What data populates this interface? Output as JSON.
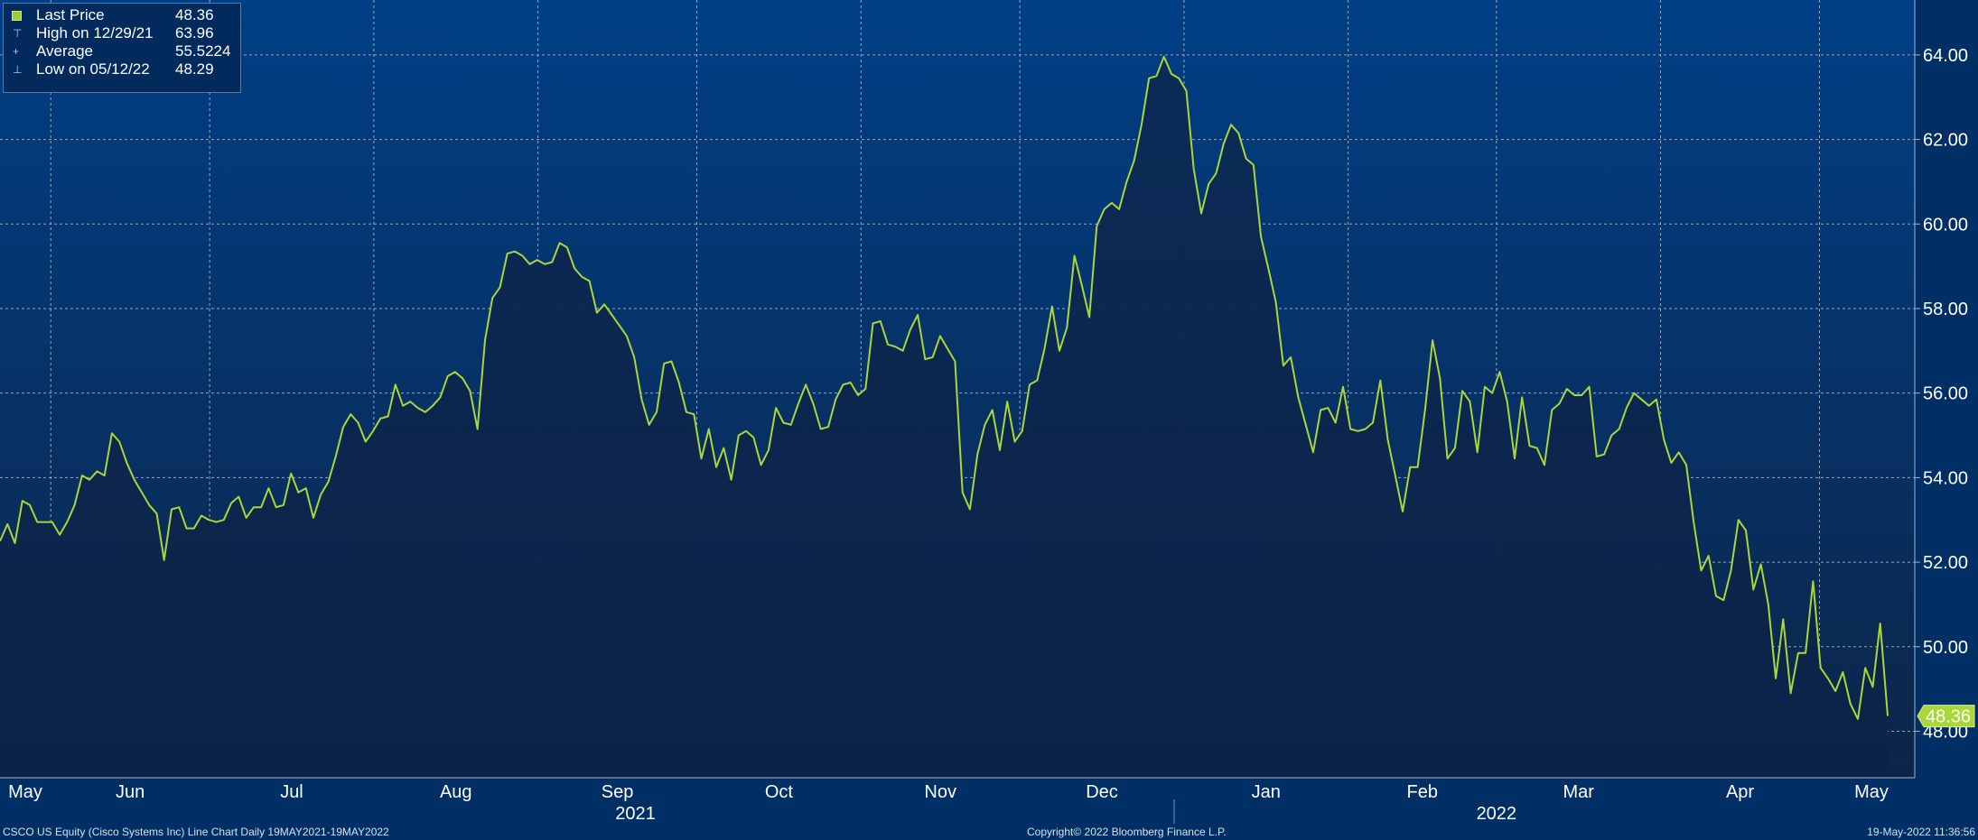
{
  "legend": {
    "last_label": "Last Price",
    "last_value": "48.36",
    "high_label": "High on 12/29/21",
    "high_value": "63.96",
    "avg_label": "Average",
    "avg_value": "55.5224",
    "low_label": "Low on 05/12/22",
    "low_value": "48.29"
  },
  "footer": {
    "left": "CSCO US Equity (Cisco Systems Inc) Line Chart  Daily 19MAY2021-19MAY2022",
    "center": "Copyright© 2022 Bloomberg Finance L.P.",
    "right": "19-May-2022 11:36:56"
  },
  "colors": {
    "background_top": "#003f86",
    "background_bottom": "#0d2548",
    "line": "#a9d638",
    "area_fill": "#0c2347",
    "grid": "#8fa6c4",
    "text": "#ffffff"
  },
  "chart_data": {
    "type": "area",
    "title": "",
    "xlabel": "",
    "ylabel": "",
    "x_range": [
      "2021-05-19",
      "2022-05-19"
    ],
    "ylim": [
      46.9,
      65.3
    ],
    "grid": true,
    "legend_position": "top-left",
    "y_ticks": [
      "48.00",
      "50.00",
      "52.00",
      "54.00",
      "56.00",
      "58.00",
      "60.00",
      "62.00",
      "64.00"
    ],
    "x_month_labels": [
      "May",
      "Jun",
      "Jul",
      "Aug",
      "Sep",
      "Oct",
      "Nov",
      "Dec",
      "Jan",
      "Feb",
      "Mar",
      "Apr",
      "May"
    ],
    "x_year_labels": [
      "2021",
      "2022"
    ],
    "last_price_tag": "48.36",
    "series": [
      {
        "name": "Last Price",
        "values": [
          52.5,
          52.9,
          52.45,
          53.45,
          53.35,
          52.95,
          52.95,
          52.95,
          52.65,
          52.95,
          53.35,
          54.05,
          53.95,
          54.15,
          54.05,
          55.05,
          54.85,
          54.35,
          53.95,
          53.65,
          53.35,
          53.15,
          52.05,
          53.25,
          53.3,
          52.8,
          52.8,
          53.1,
          53.0,
          52.95,
          53.0,
          53.4,
          53.55,
          53.05,
          53.3,
          53.3,
          53.75,
          53.3,
          53.35,
          54.1,
          53.65,
          53.75,
          53.05,
          53.6,
          53.9,
          54.5,
          55.2,
          55.5,
          55.3,
          54.85,
          55.1,
          55.4,
          55.45,
          56.2,
          55.7,
          55.8,
          55.65,
          55.55,
          55.7,
          55.9,
          56.4,
          56.5,
          56.35,
          56.05,
          55.15,
          57.25,
          58.25,
          58.5,
          59.3,
          59.35,
          59.25,
          59.05,
          59.15,
          59.05,
          59.1,
          59.55,
          59.45,
          58.95,
          58.75,
          58.65,
          57.9,
          58.1,
          57.85,
          57.6,
          57.35,
          56.85,
          55.85,
          55.25,
          55.55,
          56.7,
          56.75,
          56.25,
          55.55,
          55.5,
          54.45,
          55.15,
          54.25,
          54.7,
          53.95,
          55.0,
          55.1,
          54.95,
          54.3,
          54.65,
          55.65,
          55.3,
          55.25,
          55.75,
          56.2,
          55.75,
          55.15,
          55.2,
          55.85,
          56.2,
          56.25,
          55.95,
          56.1,
          57.65,
          57.7,
          57.15,
          57.1,
          57.0,
          57.5,
          57.85,
          56.8,
          56.85,
          57.35,
          57.05,
          56.75,
          53.65,
          53.25,
          54.55,
          55.25,
          55.6,
          54.65,
          55.8,
          54.85,
          55.1,
          56.2,
          56.3,
          57.05,
          58.05,
          57.0,
          57.55,
          59.25,
          58.55,
          57.8,
          59.95,
          60.35,
          60.5,
          60.35,
          61.0,
          61.5,
          62.35,
          63.45,
          63.5,
          63.96,
          63.55,
          63.45,
          63.15,
          61.3,
          60.25,
          60.95,
          61.2,
          61.9,
          62.35,
          62.15,
          61.55,
          61.4,
          59.7,
          58.95,
          58.15,
          56.65,
          56.85,
          55.9,
          55.25,
          54.6,
          55.6,
          55.65,
          55.3,
          56.15,
          55.15,
          55.1,
          55.15,
          55.3,
          56.3,
          54.9,
          54.05,
          53.2,
          54.25,
          54.25,
          55.6,
          57.25,
          56.35,
          54.45,
          54.7,
          56.05,
          55.8,
          54.6,
          56.15,
          56.0,
          56.5,
          55.8,
          54.45,
          55.9,
          54.75,
          54.7,
          54.3,
          55.6,
          55.75,
          56.1,
          55.95,
          55.95,
          56.15,
          54.5,
          54.55,
          55.0,
          55.15,
          55.65,
          56.0,
          55.85,
          55.7,
          55.85,
          54.9,
          54.35,
          54.6,
          54.3,
          52.95,
          51.8,
          52.15,
          51.2,
          51.1,
          51.8,
          53.0,
          52.75,
          51.35,
          51.95,
          51.0,
          49.25,
          50.65,
          48.9,
          49.85,
          49.85,
          51.55,
          49.5,
          49.25,
          48.95,
          49.4,
          48.65,
          48.29,
          49.5,
          49.05,
          50.55,
          48.36
        ]
      }
    ]
  }
}
